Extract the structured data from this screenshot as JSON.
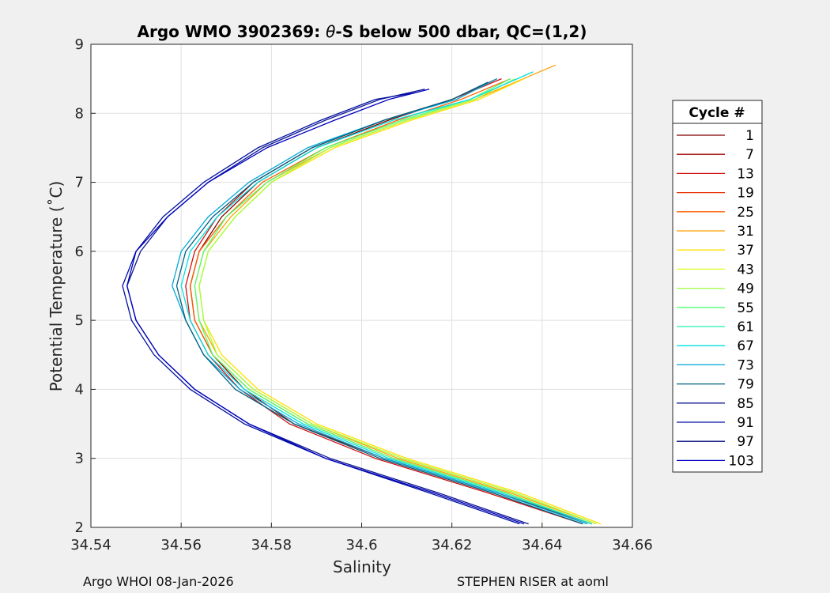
{
  "chart_data": {
    "type": "line",
    "title_prefix": "Argo WMO 3902369: ",
    "title_theta": "θ",
    "title_suffix": "-S below 500 dbar,  QC=(1,2)",
    "xlabel": "Salinity",
    "ylabel": "Potential Temperature (˚C)",
    "xlim": [
      34.54,
      34.66
    ],
    "ylim": [
      2,
      9
    ],
    "xticks": [
      "34.54",
      "34.56",
      "34.58",
      "34.6",
      "34.62",
      "34.64",
      "34.66"
    ],
    "yticks": [
      "2",
      "3",
      "4",
      "5",
      "6",
      "7",
      "8",
      "9"
    ],
    "grid": true,
    "legend": {
      "title": "Cycle #",
      "placement": "right, outside",
      "entries": [
        {
          "label": "1",
          "color": "#800000"
        },
        {
          "label": "7",
          "color": "#a00000"
        },
        {
          "label": "13",
          "color": "#d01010"
        },
        {
          "label": "19",
          "color": "#e83000"
        },
        {
          "label": "25",
          "color": "#ff6000"
        },
        {
          "label": "31",
          "color": "#ffa000"
        },
        {
          "label": "37",
          "color": "#ffe000"
        },
        {
          "label": "43",
          "color": "#e0ff20"
        },
        {
          "label": "49",
          "color": "#a0ff40"
        },
        {
          "label": "55",
          "color": "#50ff70"
        },
        {
          "label": "61",
          "color": "#20f0b0"
        },
        {
          "label": "67",
          "color": "#00e0e0"
        },
        {
          "label": "73",
          "color": "#00a8d8"
        },
        {
          "label": "79",
          "color": "#006080"
        },
        {
          "label": "85",
          "color": "#101890"
        },
        {
          "label": "91",
          "color": "#0010a0"
        },
        {
          "label": "97",
          "color": "#000880"
        },
        {
          "label": "103",
          "color": "#0000c0"
        }
      ]
    },
    "series": [
      {
        "color": "#800000",
        "x": [
          34.651,
          34.63,
          34.605,
          34.585,
          34.574,
          34.567,
          34.563,
          34.562,
          34.564,
          34.569,
          34.577,
          34.59,
          34.606,
          34.62,
          34.63
        ],
        "y": [
          2.05,
          2.5,
          3.0,
          3.5,
          4.0,
          4.5,
          5.0,
          5.5,
          6.0,
          6.5,
          7.0,
          7.5,
          7.9,
          8.2,
          8.5
        ]
      },
      {
        "color": "#d01010",
        "x": [
          34.649,
          34.628,
          34.603,
          34.584,
          34.573,
          34.566,
          34.562,
          34.561,
          34.563,
          34.568,
          34.576,
          34.589,
          34.605,
          34.62,
          34.631
        ],
        "y": [
          2.05,
          2.5,
          3.0,
          3.5,
          4.0,
          4.5,
          5.0,
          5.5,
          6.0,
          6.5,
          7.0,
          7.5,
          7.9,
          8.2,
          8.5
        ]
      },
      {
        "color": "#ff6000",
        "x": [
          34.651,
          34.632,
          34.607,
          34.588,
          34.575,
          34.567,
          34.563,
          34.562,
          34.564,
          34.57,
          34.578,
          34.592,
          34.608,
          34.622,
          34.633
        ],
        "y": [
          2.05,
          2.5,
          3.0,
          3.5,
          4.0,
          4.5,
          5.0,
          5.5,
          6.0,
          6.5,
          7.0,
          7.5,
          7.9,
          8.2,
          8.5
        ]
      },
      {
        "color": "#ffa000",
        "x": [
          34.652,
          34.633,
          34.608,
          34.589,
          34.576,
          34.568,
          34.564,
          34.563,
          34.565,
          34.571,
          34.579,
          34.593,
          34.61,
          34.625,
          34.643
        ],
        "y": [
          2.05,
          2.5,
          3.0,
          3.5,
          4.0,
          4.5,
          5.0,
          5.5,
          6.0,
          6.5,
          7.0,
          7.5,
          7.9,
          8.2,
          8.7
        ]
      },
      {
        "color": "#ffe000",
        "x": [
          34.653,
          34.635,
          34.61,
          34.59,
          34.577,
          34.569,
          34.565,
          34.564,
          34.566,
          34.572,
          34.58,
          34.594,
          34.611,
          34.626,
          34.636
        ],
        "y": [
          2.05,
          2.5,
          3.0,
          3.5,
          4.0,
          4.5,
          5.0,
          5.5,
          6.0,
          6.5,
          7.0,
          7.5,
          7.9,
          8.2,
          8.5
        ]
      },
      {
        "color": "#a0ff40",
        "x": [
          34.652,
          34.634,
          34.609,
          34.589,
          34.576,
          34.568,
          34.565,
          34.564,
          34.566,
          34.572,
          34.58,
          34.593,
          34.61,
          34.625,
          34.634
        ],
        "y": [
          2.05,
          2.5,
          3.0,
          3.5,
          4.0,
          4.5,
          5.0,
          5.5,
          6.0,
          6.5,
          7.0,
          7.5,
          7.9,
          8.2,
          8.5
        ]
      },
      {
        "color": "#50ff70",
        "x": [
          34.651,
          34.632,
          34.607,
          34.588,
          34.575,
          34.567,
          34.564,
          34.563,
          34.565,
          34.57,
          34.579,
          34.592,
          34.609,
          34.624,
          34.633
        ],
        "y": [
          2.05,
          2.5,
          3.0,
          3.5,
          4.0,
          4.5,
          5.0,
          5.5,
          6.0,
          6.5,
          7.0,
          7.5,
          7.9,
          8.2,
          8.5
        ]
      },
      {
        "color": "#00e0e0",
        "x": [
          34.651,
          34.631,
          34.606,
          34.587,
          34.574,
          34.566,
          34.562,
          34.56,
          34.562,
          34.568,
          34.577,
          34.59,
          34.607,
          34.624,
          34.638
        ],
        "y": [
          2.05,
          2.5,
          3.0,
          3.5,
          4.0,
          4.5,
          5.0,
          5.5,
          6.0,
          6.5,
          7.0,
          7.5,
          7.9,
          8.2,
          8.6
        ]
      },
      {
        "color": "#00a8d8",
        "x": [
          34.65,
          34.63,
          34.605,
          34.586,
          34.573,
          34.565,
          34.561,
          34.558,
          34.56,
          34.566,
          34.575,
          34.588,
          34.605,
          34.621,
          34.63
        ],
        "y": [
          2.05,
          2.5,
          3.0,
          3.5,
          4.0,
          4.5,
          5.0,
          5.5,
          6.0,
          6.5,
          7.0,
          7.5,
          7.9,
          8.2,
          8.5
        ]
      },
      {
        "color": "#006080",
        "x": [
          34.649,
          34.629,
          34.604,
          34.585,
          34.572,
          34.565,
          34.561,
          34.559,
          34.561,
          34.567,
          34.576,
          34.589,
          34.605,
          34.62,
          34.628
        ],
        "y": [
          2.05,
          2.5,
          3.0,
          3.5,
          4.0,
          4.5,
          5.0,
          5.5,
          6.0,
          6.5,
          7.0,
          7.5,
          7.9,
          8.2,
          8.45
        ]
      },
      {
        "color": "#101890",
        "x": [
          34.637,
          34.617,
          34.593,
          34.575,
          34.563,
          34.555,
          34.55,
          34.548,
          34.551,
          34.557,
          34.566,
          34.578,
          34.592,
          34.604,
          34.614
        ],
        "y": [
          2.05,
          2.5,
          3.0,
          3.5,
          4.0,
          4.5,
          5.0,
          5.5,
          6.0,
          6.5,
          7.0,
          7.5,
          7.9,
          8.2,
          8.35
        ]
      },
      {
        "color": "#0010a0",
        "x": [
          34.635,
          34.615,
          34.592,
          34.574,
          34.562,
          34.554,
          34.549,
          34.547,
          34.55,
          34.556,
          34.565,
          34.577,
          34.591,
          34.603,
          34.612
        ],
        "y": [
          2.05,
          2.5,
          3.0,
          3.5,
          4.0,
          4.5,
          5.0,
          5.5,
          6.0,
          6.5,
          7.0,
          7.5,
          7.9,
          8.2,
          8.3
        ]
      },
      {
        "color": "#0000c0",
        "x": [
          34.636,
          34.616,
          34.592,
          34.575,
          34.563,
          34.555,
          34.55,
          34.548,
          34.55,
          34.557,
          34.566,
          34.579,
          34.594,
          34.606,
          34.615
        ],
        "y": [
          2.05,
          2.5,
          3.0,
          3.5,
          4.0,
          4.5,
          5.0,
          5.5,
          6.0,
          6.5,
          7.0,
          7.5,
          7.9,
          8.2,
          8.35
        ]
      }
    ]
  },
  "footer": {
    "left": "Argo WHOI 08-Jan-2026",
    "right": "STEPHEN RISER at aoml"
  }
}
